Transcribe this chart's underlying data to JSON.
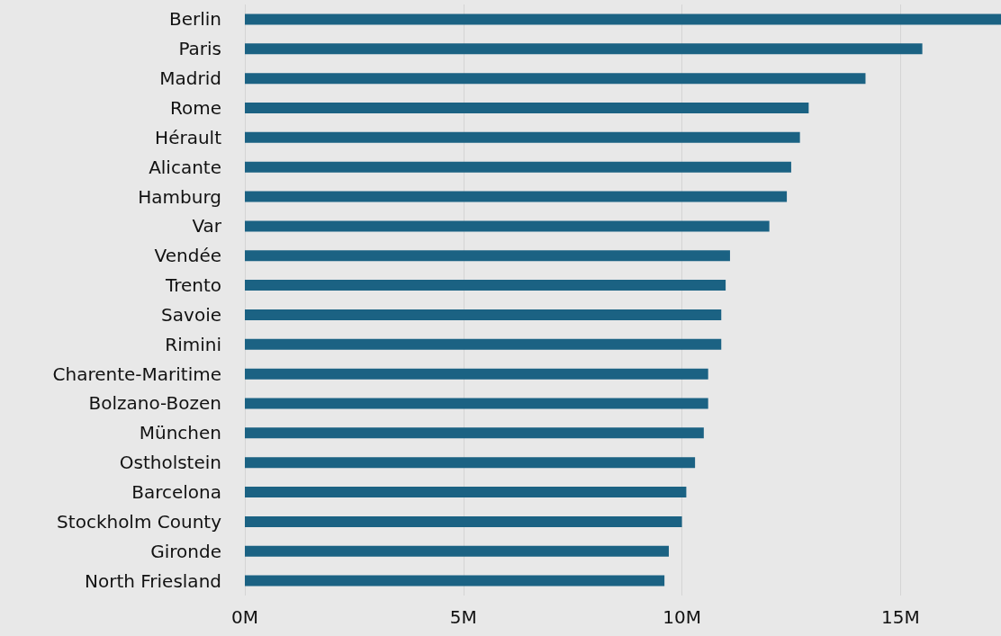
{
  "chart_data": {
    "type": "bar",
    "orientation": "horizontal",
    "categories": [
      "Berlin",
      "Paris",
      "Madrid",
      "Rome",
      "Hérault",
      "Alicante",
      "Hamburg",
      "Var",
      "Vendée",
      "Trento",
      "Savoie",
      "Rimini",
      "Charente-Maritime",
      "Bolzano-Bozen",
      "München",
      "Ostholstein",
      "Barcelona",
      "Stockholm County",
      "Gironde",
      "North Friesland"
    ],
    "values": [
      17.3,
      15.5,
      14.2,
      12.9,
      12.7,
      12.5,
      12.4,
      12.0,
      11.1,
      11.0,
      10.9,
      10.9,
      10.6,
      10.6,
      10.5,
      10.3,
      10.1,
      10.0,
      9.7,
      9.6
    ],
    "color": "#1b6283",
    "xlim": [
      0,
      17.3
    ],
    "xticks": [
      {
        "value": 0,
        "label": "0M"
      },
      {
        "value": 5,
        "label": "5M"
      },
      {
        "value": 10,
        "label": "10M"
      },
      {
        "value": 15,
        "label": "15M"
      }
    ],
    "grid": "x"
  }
}
